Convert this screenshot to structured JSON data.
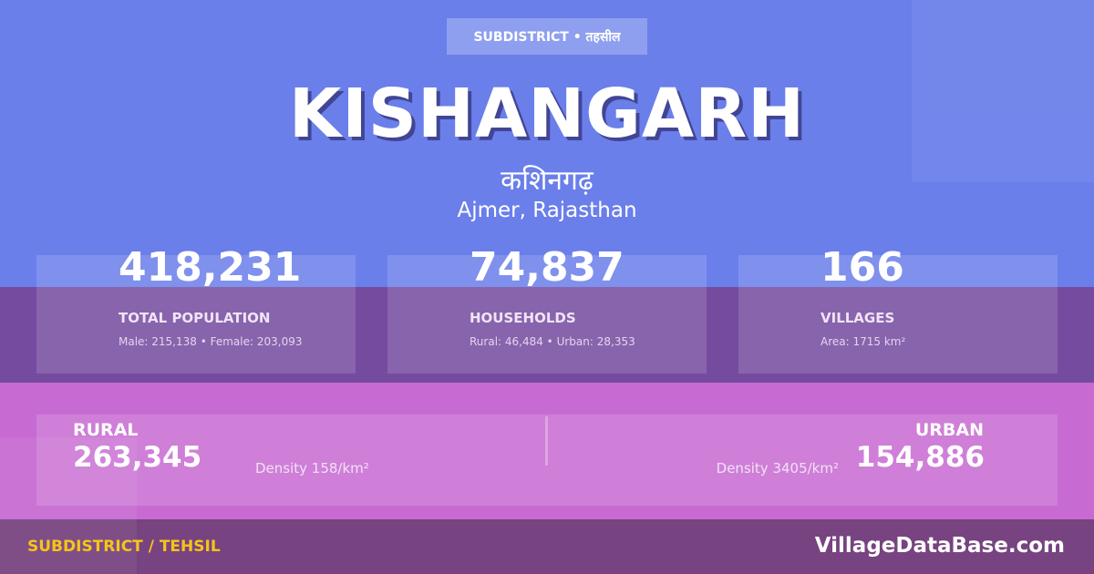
{
  "colors": {
    "top": "#6a7fea",
    "band": "#754b9f",
    "pink": "#c76bd2",
    "footer": "#774380",
    "accent": "#f5c518"
  },
  "badge": "SUBDISTRICT • तहसील",
  "title": "KISHANGARH",
  "title_hindi": "कशिनगढ़",
  "location": "Ajmer, Rajasthan",
  "stats": [
    {
      "value": "418,231",
      "label": "TOTAL POPULATION",
      "sub": "Male: 215,138 • Female: 203,093"
    },
    {
      "value": "74,837",
      "label": "HOUSEHOLDS",
      "sub": "Rural: 46,484 • Urban: 28,353"
    },
    {
      "value": "166",
      "label": "VILLAGES",
      "sub": "Area: 1715 km²"
    }
  ],
  "rural": {
    "label": "RURAL",
    "value": "263,345",
    "density": "Density 158/km²"
  },
  "urban": {
    "label": "URBAN",
    "value": "154,886",
    "density": "Density 3405/km²"
  },
  "footer": {
    "left": "SUBDISTRICT / TEHSIL",
    "right": "VillageDataBase.com"
  }
}
